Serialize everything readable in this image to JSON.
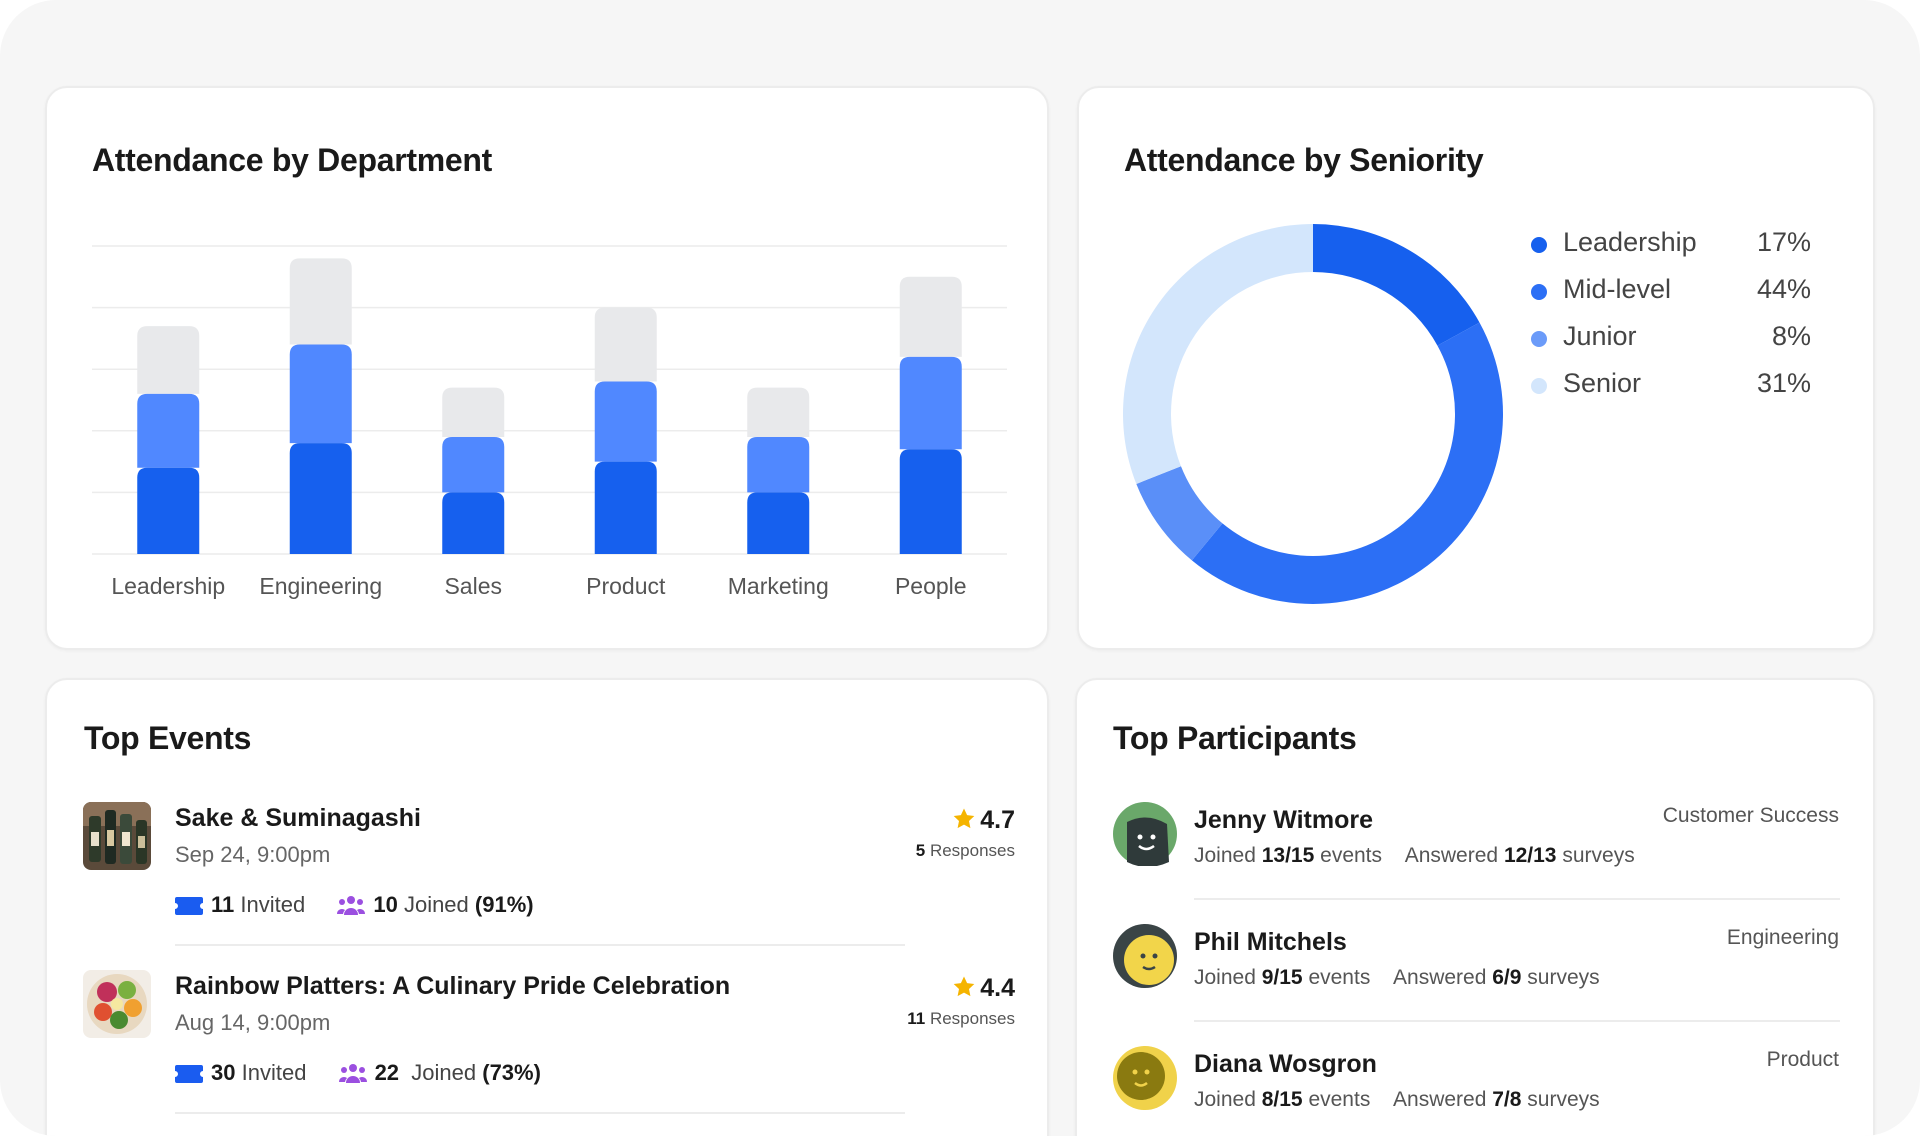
{
  "department": {
    "title": "Attendance by Department",
    "chart_data": {
      "type": "bar",
      "stacked": true,
      "categories": [
        "Leadership",
        "Engineering",
        "Sales",
        "Product",
        "Marketing",
        "People"
      ],
      "series": [
        {
          "values": [
            14,
            18,
            10,
            15,
            10,
            17
          ],
          "color": "#1660ee"
        },
        {
          "values": [
            12,
            16,
            9,
            13,
            9,
            15
          ],
          "color": "#5088ff"
        },
        {
          "values": [
            11,
            14,
            8,
            12,
            8,
            13
          ],
          "color": "#e8e9eb"
        }
      ],
      "ylim": [
        0,
        50
      ],
      "grid": true,
      "xlabel": "",
      "ylabel": ""
    }
  },
  "seniority": {
    "title": "Attendance by Seniority",
    "chart_data": {
      "type": "pie",
      "donut": true,
      "legend": "right",
      "slices": [
        {
          "label": "Leadership",
          "value": 17,
          "display": "17%",
          "color": "#1660ee"
        },
        {
          "label": "Mid-level",
          "value": 44,
          "display": "44%",
          "color": "#2c6ff5"
        },
        {
          "label": "Junior",
          "value": 8,
          "display": "8%",
          "color": "#5a8ff8"
        },
        {
          "label": "Senior",
          "value": 31,
          "display": "31%",
          "color": "#d3e6fc"
        }
      ]
    }
  },
  "events": {
    "title": "Top Events",
    "items": [
      {
        "title": "Sake & Suminagashi",
        "date": "Sep 24, 9:00pm",
        "invited": "11",
        "invited_label": "Invited",
        "joined": "10",
        "joined_label": "Joined",
        "joined_pct": "(91%)",
        "rating": "4.7",
        "responses": "5",
        "responses_label": "Responses",
        "thumb_icon": "sake-bottles-image"
      },
      {
        "title": "Rainbow Platters: A Culinary Pride Celebration",
        "date": "Aug 14, 9:00pm",
        "invited": "30",
        "invited_label": "Invited",
        "joined": "22",
        "joined_label": "Joined",
        "joined_pct": "(73%)",
        "rating": "4.4",
        "responses": "11",
        "responses_label": "Responses",
        "thumb_icon": "food-platter-image"
      }
    ]
  },
  "participants": {
    "title": "Top Participants",
    "items": [
      {
        "name": "Jenny Witmore",
        "department": "Customer Success",
        "joined_label": "Joined",
        "joined": "13/15",
        "events_label": "events",
        "answered_label": "Answered",
        "answered": "12/13",
        "surveys_label": "surveys",
        "avatar_colors": {
          "bg": "#6aa86a",
          "face": "#2f3a3a"
        }
      },
      {
        "name": "Phil Mitchels",
        "department": "Engineering",
        "joined_label": "Joined",
        "joined": "9/15",
        "events_label": "events",
        "answered_label": "Answered",
        "answered": "6/9",
        "surveys_label": "surveys",
        "avatar_colors": {
          "bg": "#3a4446",
          "face": "#f2d54a"
        }
      },
      {
        "name": "Diana Wosgron",
        "department": "Product",
        "joined_label": "Joined",
        "joined": "8/15",
        "events_label": "events",
        "answered_label": "Answered",
        "answered": "7/8",
        "surveys_label": "surveys",
        "avatar_colors": {
          "bg": "#f0d24a",
          "face": "#8a7a10"
        }
      }
    ]
  },
  "colors": {
    "accent": "#1660ee",
    "star": "#f5b400",
    "ticket": "#1a5cf0",
    "people": "#9b4fe0"
  }
}
